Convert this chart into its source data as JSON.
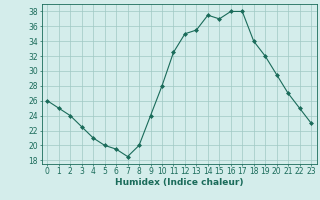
{
  "x": [
    0,
    1,
    2,
    3,
    4,
    5,
    6,
    7,
    8,
    9,
    10,
    11,
    12,
    13,
    14,
    15,
    16,
    17,
    18,
    19,
    20,
    21,
    22,
    23
  ],
  "y": [
    26,
    25,
    24,
    22.5,
    21,
    20,
    19.5,
    18.5,
    20,
    24,
    28,
    32.5,
    35,
    35.5,
    37.5,
    37,
    38,
    38,
    34,
    32,
    29.5,
    27,
    25,
    23
  ],
  "line_color": "#1a6b5a",
  "marker": "D",
  "marker_size": 2.0,
  "bg_color": "#d4edeb",
  "grid_color": "#a0c8c4",
  "xlabel": "Humidex (Indice chaleur)",
  "xlim": [
    -0.5,
    23.5
  ],
  "ylim": [
    17.5,
    39
  ],
  "yticks": [
    18,
    20,
    22,
    24,
    26,
    28,
    30,
    32,
    34,
    36,
    38
  ],
  "xticks": [
    0,
    1,
    2,
    3,
    4,
    5,
    6,
    7,
    8,
    9,
    10,
    11,
    12,
    13,
    14,
    15,
    16,
    17,
    18,
    19,
    20,
    21,
    22,
    23
  ],
  "xlabel_fontsize": 6.5,
  "tick_fontsize": 5.5,
  "linewidth": 0.8
}
